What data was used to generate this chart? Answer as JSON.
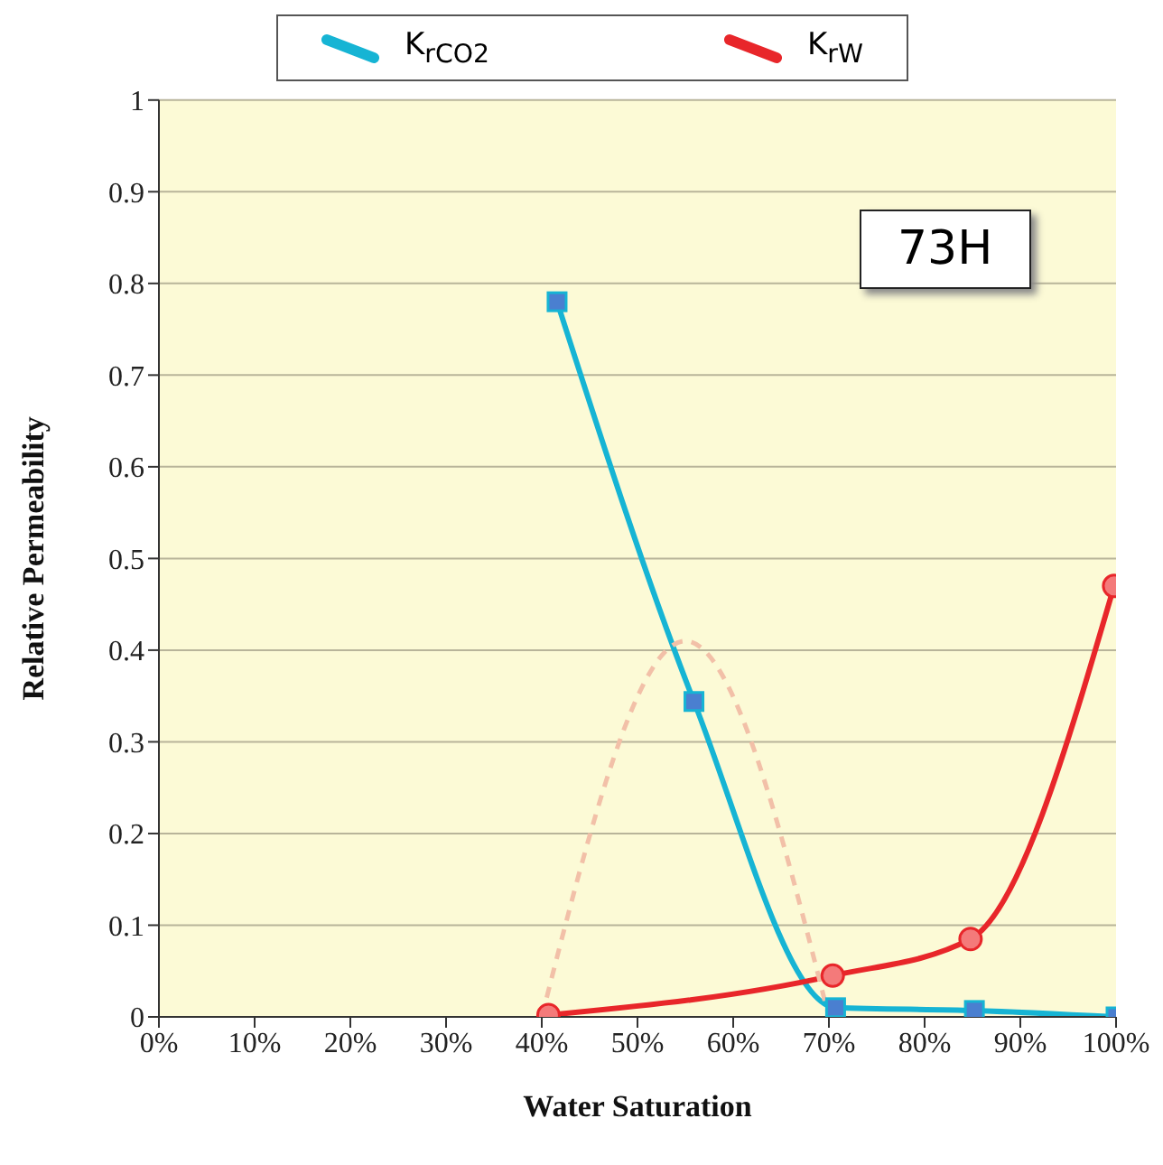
{
  "chart_data": {
    "type": "line",
    "xlabel": "Water Saturation",
    "ylabel": "Relative Permeability",
    "annotations": [
      "73H"
    ],
    "xlim": [
      0,
      100
    ],
    "xticks": [
      {
        "value": 0,
        "label": "0%"
      },
      {
        "value": 10,
        "label": "10%"
      },
      {
        "value": 20,
        "label": "20%"
      },
      {
        "value": 30,
        "label": "30%"
      },
      {
        "value": 40,
        "label": "40%"
      },
      {
        "value": 50,
        "label": "50%"
      },
      {
        "value": 60,
        "label": "60%"
      },
      {
        "value": 70,
        "label": "70%"
      },
      {
        "value": 80,
        "label": "80%"
      },
      {
        "value": 90,
        "label": "90%"
      },
      {
        "value": 100,
        "label": "100%"
      }
    ],
    "ylim": [
      0,
      1
    ],
    "yticks": [
      0,
      0.1,
      0.2,
      0.3,
      0.4,
      0.5,
      0.6,
      0.7,
      0.8,
      0.9,
      1
    ],
    "grid": "y",
    "legend": "top",
    "series": [
      {
        "name": "K$_{rCO2}$",
        "color": "#16b4d4",
        "marker": "square",
        "line_style": "solid",
        "x": [
          41.6,
          55.9,
          70.7,
          85.2,
          100
        ],
        "values": [
          0.78,
          0.344,
          0.01,
          0.007,
          0
        ]
      },
      {
        "name": "K$_{rW}$",
        "color": "#e8262a",
        "marker": "circle",
        "line_style": "solid",
        "x": [
          40.7,
          70.4,
          84.8,
          99.8
        ],
        "values": [
          0.002,
          0.045,
          0.085,
          0.47
        ]
      },
      {
        "color": "#f2c0a8",
        "marker": "none",
        "line_style": "dashed",
        "x": [
          40,
          55,
          70
        ],
        "values": [
          0,
          0.41,
          0
        ]
      }
    ]
  }
}
